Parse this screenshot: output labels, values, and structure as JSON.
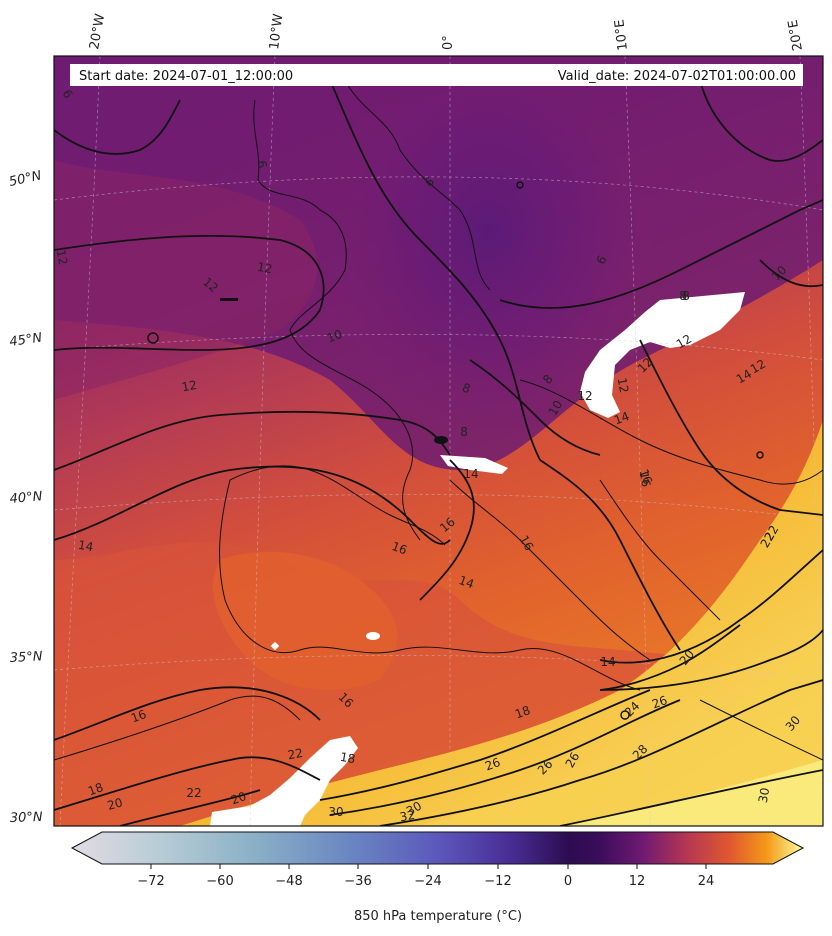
{
  "header": {
    "start_date": "Start date: 2024-07-01_12:00:00",
    "valid_date": "Valid_date: 2024-07-02T01:00:00.00"
  },
  "map": {
    "longitude_labels": [
      "20°W",
      "10°W",
      "0°",
      "10°E",
      "20°E"
    ],
    "latitude_labels": [
      "50°N",
      "45°N",
      "40°N",
      "35°N",
      "30°N"
    ],
    "contour_labels": [
      "6",
      "6",
      "6",
      "6",
      "12",
      "12",
      "12",
      "10",
      "12",
      "8",
      "8",
      "8",
      "10",
      "12",
      "8",
      "12",
      "12",
      "12",
      "14",
      "14",
      "16",
      "16",
      "16",
      "14",
      "16",
      "14",
      "14",
      "16",
      "16",
      "18",
      "18",
      "18",
      "20",
      "20",
      "22",
      "22",
      "22",
      "24",
      "26",
      "26",
      "26",
      "26",
      "28",
      "30",
      "30",
      "30",
      "32",
      "30",
      "8",
      "10",
      "12",
      "14",
      "22",
      "16",
      "20"
    ]
  },
  "colorbar": {
    "label": "850 hPa temperature (∘C)",
    "label_text": "850 hPa temperature (°C)",
    "ticks": [
      "−72",
      "−60",
      "−48",
      "−36",
      "−24",
      "−12",
      "0",
      "12",
      "24"
    ],
    "colors": {
      "cold": "#e2dbe4",
      "blue": "#5a63c0",
      "violet": "#3a0e6e",
      "magenta": "#7a1a72",
      "red": "#c84a46",
      "orange": "#f08c1c",
      "yellow": "#fdfd9a"
    }
  }
}
